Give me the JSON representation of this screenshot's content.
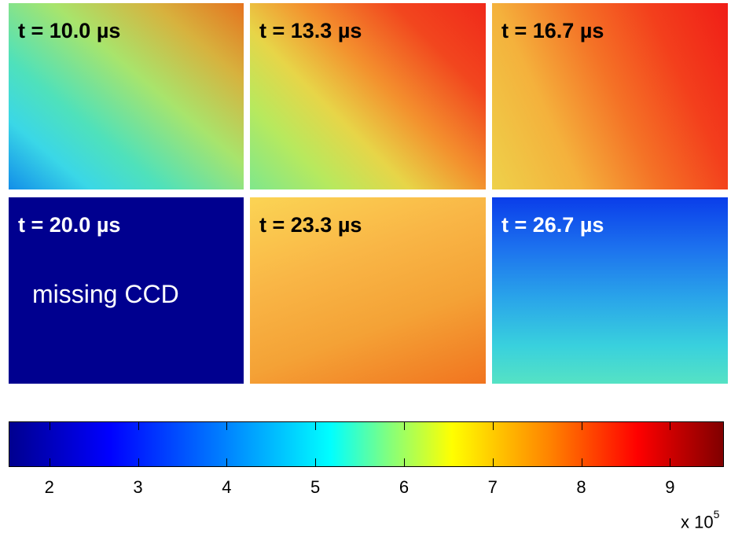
{
  "panels": [
    {
      "label": "t = 10.0 µs",
      "note": ""
    },
    {
      "label": "t = 13.3 µs",
      "note": ""
    },
    {
      "label": "t = 16.7 µs",
      "note": ""
    },
    {
      "label": "t = 20.0 µs",
      "note": "missing CCD"
    },
    {
      "label": "t = 23.3 µs",
      "note": ""
    },
    {
      "label": "t = 26.7 µs",
      "note": ""
    }
  ],
  "colorbar": {
    "range": [
      1.55,
      9.6
    ],
    "ticks": [
      "2",
      "3",
      "4",
      "5",
      "6",
      "7",
      "8",
      "9"
    ],
    "scale_label": "x 10",
    "scale_exponent": "5",
    "colormap": "jet"
  }
}
